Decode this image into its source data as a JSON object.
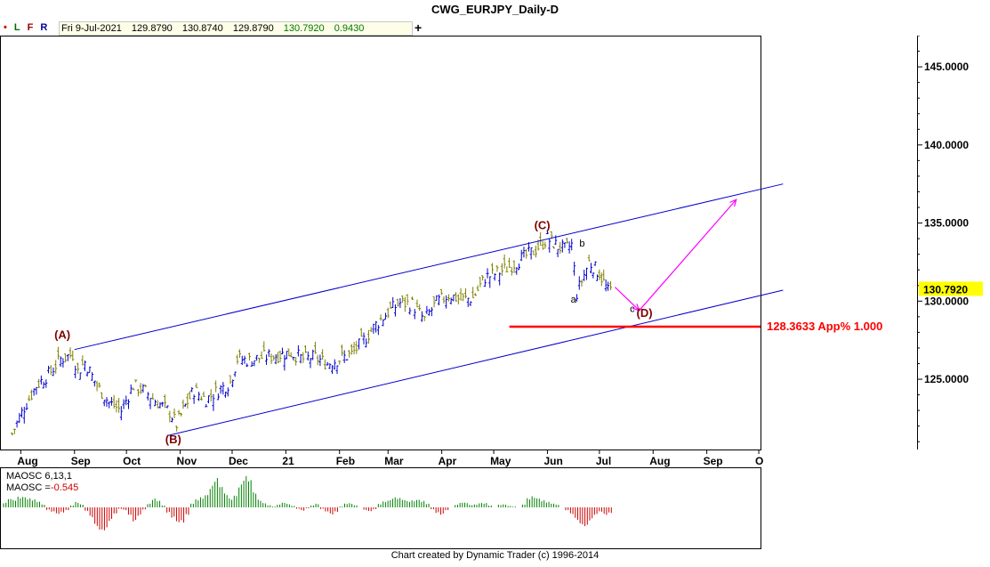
{
  "header": {
    "title": "CWG_EURJPY_Daily-D",
    "flags": [
      {
        "label": "•",
        "color": "#cc0000"
      },
      {
        "label": "L",
        "color": "#006600"
      },
      {
        "label": "F",
        "color": "#990000"
      },
      {
        "label": "R",
        "color": "#000099"
      }
    ],
    "ohlc": {
      "date": "Fri 9-Jul-2021",
      "open": "129.8790",
      "high": "130.8740",
      "low": "129.8790",
      "close": "130.7920",
      "change": "0.9430"
    },
    "add_label": "+"
  },
  "chart_data": [
    {
      "type": "line",
      "subtype": "ohlc-bars",
      "title": "CWG_EURJPY_Daily-D",
      "x_tick_labels": [
        "Aug",
        "Sep",
        "Oct",
        "Nov",
        "Dec",
        "21",
        "Feb",
        "Mar",
        "Apr",
        "May",
        "Jun",
        "Jul",
        "Aug",
        "Sep",
        "O"
      ],
      "y_ticks": [
        "125.0000",
        "130.0000",
        "135.0000",
        "140.0000",
        "145.0000"
      ],
      "ylim": [
        120.5,
        147
      ],
      "last_price": "130.7920",
      "colors": {
        "up": "#0000cc",
        "down": "#808000",
        "channel": "#0000cc",
        "projection": "#ff00ff",
        "level": "#ff0000",
        "wave_label": "#800000"
      },
      "close_path": [
        {
          "x": "2020-07-27",
          "y": 121.5
        },
        {
          "x": "2020-08-03",
          "y": 123.2
        },
        {
          "x": "2020-08-10",
          "y": 124.6
        },
        {
          "x": "2020-08-17",
          "y": 125.3
        },
        {
          "x": "2020-08-24",
          "y": 126.3
        },
        {
          "x": "2020-08-31",
          "y": 126.6
        },
        {
          "x": "2020-09-03",
          "y": 125.5
        },
        {
          "x": "2020-09-07",
          "y": 126.1
        },
        {
          "x": "2020-09-14",
          "y": 124.6
        },
        {
          "x": "2020-09-21",
          "y": 123.5
        },
        {
          "x": "2020-09-28",
          "y": 123.0
        },
        {
          "x": "2020-10-05",
          "y": 124.6
        },
        {
          "x": "2020-10-12",
          "y": 124.2
        },
        {
          "x": "2020-10-19",
          "y": 123.5
        },
        {
          "x": "2020-10-26",
          "y": 122.9
        },
        {
          "x": "2020-10-30",
          "y": 122.1
        },
        {
          "x": "2020-11-04",
          "y": 123.3
        },
        {
          "x": "2020-11-09",
          "y": 124.3
        },
        {
          "x": "2020-11-16",
          "y": 123.7
        },
        {
          "x": "2020-11-23",
          "y": 124.3
        },
        {
          "x": "2020-11-30",
          "y": 124.8
        },
        {
          "x": "2020-12-04",
          "y": 126.3
        },
        {
          "x": "2020-12-11",
          "y": 126.2
        },
        {
          "x": "2020-12-18",
          "y": 126.4
        },
        {
          "x": "2020-12-25",
          "y": 126.5
        },
        {
          "x": "2021-01-04",
          "y": 126.7
        },
        {
          "x": "2021-01-11",
          "y": 126.3
        },
        {
          "x": "2021-01-18",
          "y": 126.4
        },
        {
          "x": "2021-01-25",
          "y": 126.0
        },
        {
          "x": "2021-02-01",
          "y": 126.3
        },
        {
          "x": "2021-02-08",
          "y": 126.6
        },
        {
          "x": "2021-02-15",
          "y": 127.5
        },
        {
          "x": "2021-02-22",
          "y": 128.5
        },
        {
          "x": "2021-03-01",
          "y": 129.3
        },
        {
          "x": "2021-03-08",
          "y": 129.9
        },
        {
          "x": "2021-03-15",
          "y": 129.8
        },
        {
          "x": "2021-03-22",
          "y": 128.8
        },
        {
          "x": "2021-03-29",
          "y": 129.9
        },
        {
          "x": "2021-04-05",
          "y": 130.4
        },
        {
          "x": "2021-04-12",
          "y": 130.1
        },
        {
          "x": "2021-04-19",
          "y": 130.2
        },
        {
          "x": "2021-04-26",
          "y": 131.5
        },
        {
          "x": "2021-05-03",
          "y": 131.8
        },
        {
          "x": "2021-05-10",
          "y": 132.2
        },
        {
          "x": "2021-05-17",
          "y": 132.7
        },
        {
          "x": "2021-05-24",
          "y": 133.2
        },
        {
          "x": "2021-06-01",
          "y": 134.0
        },
        {
          "x": "2021-06-07",
          "y": 133.5
        },
        {
          "x": "2021-06-11",
          "y": 133.3
        },
        {
          "x": "2021-06-15",
          "y": 133.6
        },
        {
          "x": "2021-06-18",
          "y": 130.5
        },
        {
          "x": "2021-06-25",
          "y": 132.5
        },
        {
          "x": "2021-07-01",
          "y": 131.8
        },
        {
          "x": "2021-07-06",
          "y": 130.6
        },
        {
          "x": "2021-07-09",
          "y": 130.8
        }
      ],
      "channel_lines": [
        {
          "from": {
            "x": "2020-09-01",
            "y": 126.9
          },
          "to": {
            "x": "2021-10-15",
            "y": 137.5
          }
        },
        {
          "from": {
            "x": "2020-10-25",
            "y": 121.4
          },
          "to": {
            "x": "2021-10-15",
            "y": 130.7
          }
        }
      ],
      "projection_path": [
        {
          "x": "2021-07-10",
          "y": 130.9
        },
        {
          "x": "2021-07-24",
          "y": 129.4
        },
        {
          "x": "2021-09-18",
          "y": 136.5
        }
      ],
      "level": {
        "y": 128.3633,
        "label": "128.3633 App% 1.000",
        "from": "2021-05-10"
      },
      "wave_labels": [
        {
          "text": "(A)",
          "x": "2020-08-25",
          "y": 127.6
        },
        {
          "text": "(B)",
          "x": "2020-10-28",
          "y": 120.9
        },
        {
          "text": "(C)",
          "x": "2021-05-29",
          "y": 134.6
        },
        {
          "text": "(D)",
          "x": "2021-07-27",
          "y": 129.0
        },
        {
          "text": "a",
          "x": "2021-06-16",
          "y": 129.9
        },
        {
          "text": "b",
          "x": "2021-06-21",
          "y": 133.5
        },
        {
          "text": "c",
          "x": "2021-07-20",
          "y": 129.3
        }
      ]
    },
    {
      "type": "bar",
      "title": "MAOSC 6,13,1",
      "legend_value_label": "MAOSC =",
      "legend_value": "-0.545",
      "colors": {
        "positive": "#008000",
        "negative": "#cc0000"
      },
      "values": [
        0.5,
        0.9,
        0.8,
        1.3,
        1.5,
        1.2,
        0.9,
        0.6,
        0.3,
        -0.3,
        -0.6,
        -0.9,
        -0.6,
        -0.3,
        0.2,
        0.6,
        0.4,
        -0.5,
        -1.2,
        -2.0,
        -2.4,
        -2.5,
        -1.7,
        -0.9,
        -0.2,
        -0.3,
        -0.8,
        -1.5,
        -1.0,
        -0.3,
        0.5,
        1.0,
        0.7,
        0.2,
        -0.6,
        -1.4,
        -2.1,
        -1.8,
        -0.8,
        0.4,
        0.9,
        1.3,
        1.8,
        2.7,
        3.2,
        2.2,
        1.5,
        1.1,
        1.7,
        3.0,
        3.5,
        2.9,
        1.6,
        0.9,
        0.6,
        0.3,
        0.1,
        0.3,
        0.5,
        0.4,
        0.2,
        -0.2,
        -0.4,
        -0.1,
        0.2,
        0.4,
        -0.2,
        -0.6,
        -0.9,
        -0.5,
        0.1,
        0.4,
        0.5,
        0.3,
        0.0,
        -0.3,
        -0.4,
        -0.2,
        0.4,
        0.8,
        1.0,
        1.2,
        1.0,
        0.8,
        0.7,
        0.9,
        1.1,
        0.8,
        0.4,
        -0.2,
        -0.6,
        -0.9,
        -0.4,
        0.0,
        0.3,
        0.5,
        0.5,
        0.3,
        0.4,
        0.6,
        0.5,
        0.2,
        0.0,
        0.3,
        0.4,
        0.2,
        0.1,
        0.0,
        0.3,
        1.0,
        1.4,
        1.3,
        0.9,
        0.6,
        0.4,
        0.3,
        0.0,
        -0.4,
        -0.9,
        -1.4,
        -1.8,
        -2.0,
        -1.5,
        -1.0,
        -0.6,
        -0.9,
        -0.6
      ]
    }
  ],
  "footer": {
    "credit": "Chart created by Dynamic Trader  (c)  1996-2014"
  }
}
